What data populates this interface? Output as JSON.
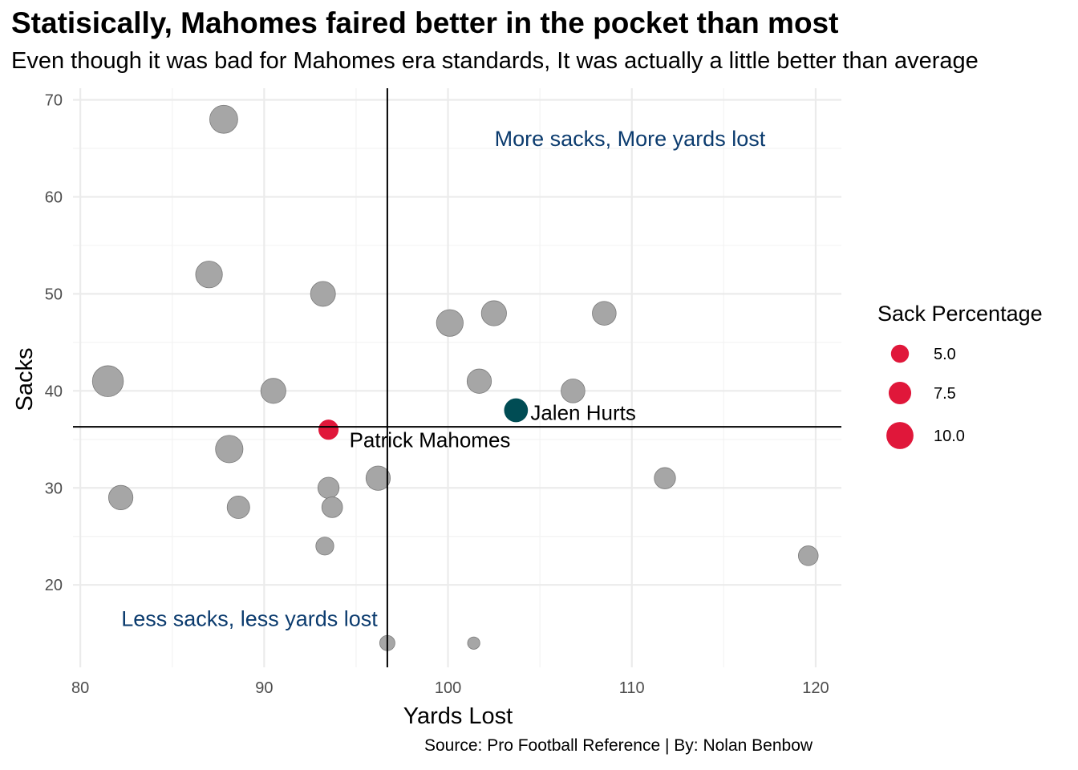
{
  "title": "Statisically, Mahomes faired better in the pocket than most",
  "subtitle": "Even though it was bad for Mahomes era standards, It was actually a little better than average",
  "caption": "Source: Pro Football Reference | By: Nolan Benbow",
  "colors": {
    "highlight_red": "#e0173a",
    "highlight_teal": "#004c54",
    "other": "#a6a6a6",
    "quadrant_text": "#0b3b6e"
  },
  "chart_data": {
    "type": "scatter",
    "xlabel": "Yards Lost",
    "ylabel": "Sacks",
    "xlim": [
      79.6,
      121.4
    ],
    "ylim": [
      11.5,
      71.2
    ],
    "x_ticks": [
      80,
      90,
      100,
      110,
      120
    ],
    "y_ticks": [
      20,
      30,
      40,
      50,
      60,
      70
    ],
    "grid": true,
    "reference_lines": {
      "x": 96.7,
      "y": 36.3
    },
    "quadrant_labels": [
      {
        "text": "More sacks, More yards lost",
        "x": 109.9,
        "y": 66
      },
      {
        "text": "Less sacks, less yards lost",
        "x": 89.2,
        "y": 16.5
      }
    ],
    "legend": {
      "title": "Sack Percentage",
      "position": "right",
      "entries": [
        {
          "label": "5.0",
          "value": 5.0
        },
        {
          "label": "7.5",
          "value": 7.5
        },
        {
          "label": "10.0",
          "value": 10.0
        }
      ]
    },
    "points": [
      {
        "x": 87.8,
        "y": 68,
        "size": 10.5,
        "group": "other"
      },
      {
        "x": 87.0,
        "y": 52,
        "size": 9.8,
        "group": "other"
      },
      {
        "x": 93.2,
        "y": 50,
        "size": 8.8,
        "group": "other"
      },
      {
        "x": 100.1,
        "y": 47,
        "size": 9.8,
        "group": "other"
      },
      {
        "x": 102.5,
        "y": 48,
        "size": 8.9,
        "group": "other"
      },
      {
        "x": 108.5,
        "y": 48,
        "size": 8.2,
        "group": "other"
      },
      {
        "x": 81.5,
        "y": 41,
        "size": 12.1,
        "group": "other"
      },
      {
        "x": 90.5,
        "y": 40,
        "size": 8.9,
        "group": "other"
      },
      {
        "x": 101.7,
        "y": 41,
        "size": 8.5,
        "group": "other"
      },
      {
        "x": 106.8,
        "y": 40,
        "size": 8.2,
        "group": "other"
      },
      {
        "x": 88.1,
        "y": 34,
        "size": 10.2,
        "group": "other"
      },
      {
        "x": 82.2,
        "y": 29,
        "size": 8.5,
        "group": "other"
      },
      {
        "x": 88.6,
        "y": 28,
        "size": 7.5,
        "group": "other"
      },
      {
        "x": 93.5,
        "y": 30,
        "size": 6.8,
        "group": "other"
      },
      {
        "x": 93.7,
        "y": 28,
        "size": 6.5,
        "group": "other"
      },
      {
        "x": 96.2,
        "y": 31,
        "size": 8.5,
        "group": "other"
      },
      {
        "x": 111.8,
        "y": 31,
        "size": 6.8,
        "group": "other"
      },
      {
        "x": 93.3,
        "y": 24,
        "size": 5.0,
        "group": "other"
      },
      {
        "x": 119.6,
        "y": 23,
        "size": 6.0,
        "group": "other"
      },
      {
        "x": 96.7,
        "y": 14,
        "size": 3.5,
        "group": "other"
      },
      {
        "x": 101.4,
        "y": 14,
        "size": 1.9,
        "group": "other"
      },
      {
        "x": 93.5,
        "y": 36,
        "size": 6.2,
        "group": "highlight_red",
        "label": "Patrick Mahomes"
      },
      {
        "x": 103.7,
        "y": 38,
        "size": 8.2,
        "group": "highlight_teal",
        "label": "Jalen Hurts"
      }
    ]
  }
}
